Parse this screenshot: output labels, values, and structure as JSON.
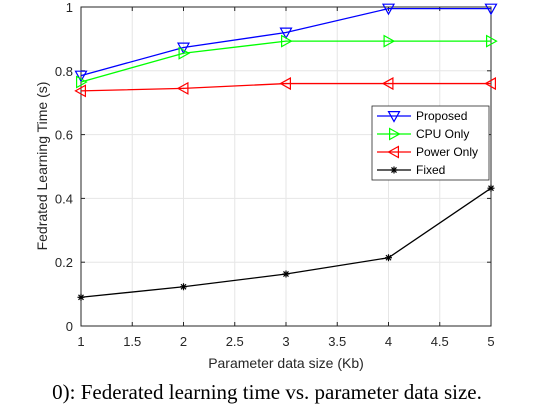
{
  "chart_data": {
    "type": "line",
    "x": [
      1,
      2,
      3,
      4,
      5
    ],
    "xlabel": "Parameter data size (Kb)",
    "ylabel": "Fedrated Learning Time (s)",
    "xlim": [
      1,
      5
    ],
    "ylim": [
      0,
      1
    ],
    "xticks": [
      "1",
      "1.5",
      "2",
      "2.5",
      "3",
      "3.5",
      "4",
      "4.5",
      "5"
    ],
    "yticks": [
      "0",
      "0.2",
      "0.4",
      "0.6",
      "0.8",
      "1"
    ],
    "grid": true,
    "legend_position": "right",
    "series": [
      {
        "name": "Proposed",
        "values": [
          0.785,
          0.873,
          0.92,
          0.995,
          0.995
        ],
        "color": "#0000ff",
        "marker": "triangle-down"
      },
      {
        "name": "CPU Only",
        "values": [
          0.765,
          0.855,
          0.893,
          0.893,
          0.893
        ],
        "color": "#00ff00",
        "marker": "triangle-right"
      },
      {
        "name": "Power Only",
        "values": [
          0.737,
          0.745,
          0.76,
          0.76,
          0.76
        ],
        "color": "#ff0000",
        "marker": "triangle-left"
      },
      {
        "name": "Fixed",
        "values": [
          0.09,
          0.123,
          0.163,
          0.214,
          0.432
        ],
        "color": "#000000",
        "marker": "asterisk"
      }
    ]
  },
  "caption": "0): Federated learning time vs. parameter data size."
}
